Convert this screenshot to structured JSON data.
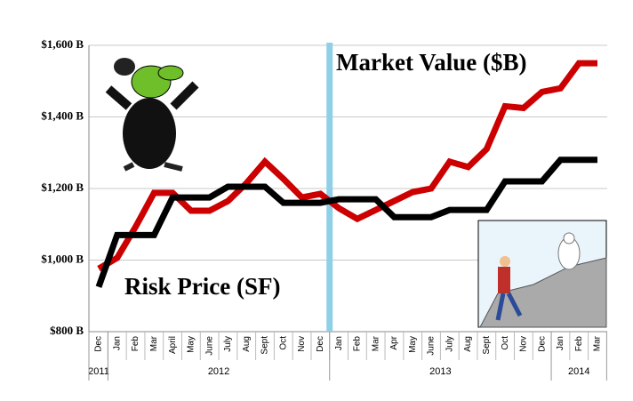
{
  "chart_data": {
    "type": "line",
    "categories": [
      "Dec",
      "Jan",
      "Feb",
      "Mar",
      "April",
      "May",
      "June",
      "July",
      "Aug",
      "Sept",
      "Oct",
      "Nov",
      "Dec",
      "Jan",
      "Feb",
      "Mar",
      "Apr",
      "May",
      "June",
      "July",
      "Aug",
      "Sept",
      "Oct",
      "Nov",
      "Dec",
      "Jan",
      "Feb",
      "Mar"
    ],
    "years": [
      "2011",
      "2012",
      "2013",
      "2014"
    ],
    "series": [
      {
        "name": "Market Value ($B)",
        "color": "#cc0000",
        "values": [
          976,
          1006,
          1093,
          1188,
          1188,
          1138,
          1138,
          1165,
          1215,
          1275,
          1227,
          1175,
          1185,
          1145,
          1115,
          1140,
          1165,
          1190,
          1200,
          1275,
          1260,
          1310,
          1430,
          1425,
          1470,
          1480,
          1550,
          1550
        ]
      },
      {
        "name": "Risk Price (SF)",
        "color": "#000000",
        "values": [
          925,
          1070,
          1070,
          1070,
          1175,
          1175,
          1175,
          1205,
          1205,
          1205,
          1160,
          1160,
          1160,
          1170,
          1170,
          1170,
          1120,
          1120,
          1120,
          1140,
          1140,
          1140,
          1220,
          1220,
          1220,
          1280,
          1280,
          1280
        ]
      }
    ],
    "ylim": [
      800,
      1600
    ],
    "yticks": [
      {
        "value": 800,
        "label": "$800 B"
      },
      {
        "value": 1000,
        "label": "$1,000 B"
      },
      {
        "value": 1200,
        "label": "$1,200 B"
      },
      {
        "value": 1400,
        "label": "$1,400 B"
      },
      {
        "value": 1600,
        "label": "$1,600 B"
      }
    ],
    "grid": true
  }
}
